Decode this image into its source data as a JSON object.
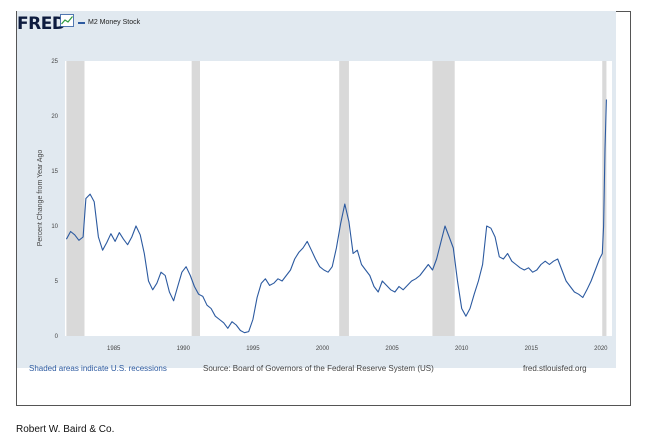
{
  "brand": "FRED",
  "legend_label": "M2 Money Stock",
  "footer": {
    "recessions_note": "Shaded areas indicate U.S. recessions",
    "source": "Source: Board of Governors of the Federal Reserve System (US)",
    "site": "fred.stlouisfed.org"
  },
  "credit": "Robert W. Baird & Co.",
  "colors": {
    "line": "#2c5aa0",
    "recession": "#d9d9d9",
    "panel": "#e1e9f0"
  },
  "chart_data": {
    "type": "line",
    "title": "",
    "xlabel": "",
    "ylabel": "Percent Change from Year Ago",
    "xlim": [
      1981.5,
      2020.8
    ],
    "ylim": [
      0,
      25
    ],
    "yticks": [
      0,
      5,
      10,
      15,
      20,
      25
    ],
    "xticks": [
      1985,
      1990,
      1995,
      2000,
      2005,
      2010,
      2015,
      2020
    ],
    "recessions": [
      [
        1981.6,
        1982.9
      ],
      [
        1990.6,
        1991.2
      ],
      [
        2001.2,
        2001.9
      ],
      [
        2007.9,
        2009.5
      ],
      [
        2020.1,
        2020.4
      ]
    ],
    "series": [
      {
        "name": "M2 Money Stock",
        "x": [
          1981.6,
          1981.9,
          1982.2,
          1982.5,
          1982.8,
          1983.0,
          1983.3,
          1983.6,
          1983.9,
          1984.2,
          1984.5,
          1984.8,
          1985.1,
          1985.4,
          1985.7,
          1986.0,
          1986.3,
          1986.6,
          1986.9,
          1987.2,
          1987.5,
          1987.8,
          1988.1,
          1988.4,
          1988.7,
          1989.0,
          1989.3,
          1989.6,
          1989.9,
          1990.2,
          1990.5,
          1990.8,
          1991.1,
          1991.4,
          1991.7,
          1992.0,
          1992.3,
          1992.6,
          1992.9,
          1993.2,
          1993.5,
          1993.8,
          1994.1,
          1994.4,
          1994.7,
          1995.0,
          1995.3,
          1995.6,
          1995.9,
          1996.2,
          1996.5,
          1996.8,
          1997.1,
          1997.4,
          1997.7,
          1998.0,
          1998.3,
          1998.6,
          1998.9,
          1999.2,
          1999.5,
          1999.8,
          2000.1,
          2000.4,
          2000.7,
          2001.0,
          2001.3,
          2001.6,
          2001.9,
          2002.2,
          2002.5,
          2002.8,
          2003.1,
          2003.4,
          2003.7,
          2004.0,
          2004.3,
          2004.6,
          2004.9,
          2005.2,
          2005.5,
          2005.8,
          2006.1,
          2006.4,
          2006.7,
          2007.0,
          2007.3,
          2007.6,
          2007.9,
          2008.2,
          2008.5,
          2008.8,
          2009.1,
          2009.4,
          2009.7,
          2010.0,
          2010.3,
          2010.6,
          2010.9,
          2011.2,
          2011.5,
          2011.8,
          2012.1,
          2012.4,
          2012.7,
          2013.0,
          2013.3,
          2013.6,
          2013.9,
          2014.2,
          2014.5,
          2014.8,
          2015.1,
          2015.4,
          2015.7,
          2016.0,
          2016.3,
          2016.6,
          2016.9,
          2017.2,
          2017.5,
          2017.8,
          2018.1,
          2018.4,
          2018.7,
          2019.0,
          2019.3,
          2019.6,
          2019.9,
          2020.1,
          2020.2,
          2020.3,
          2020.4
        ],
        "values": [
          8.8,
          9.5,
          9.2,
          8.7,
          9.0,
          12.5,
          12.9,
          12.2,
          9.0,
          7.8,
          8.5,
          9.3,
          8.6,
          9.4,
          8.8,
          8.3,
          9.0,
          10.0,
          9.2,
          7.5,
          5.0,
          4.2,
          4.8,
          5.8,
          5.5,
          4.0,
          3.2,
          4.5,
          5.8,
          6.3,
          5.5,
          4.5,
          3.8,
          3.6,
          2.8,
          2.5,
          1.8,
          1.5,
          1.2,
          0.7,
          1.3,
          1.0,
          0.5,
          0.3,
          0.4,
          1.5,
          3.5,
          4.8,
          5.2,
          4.6,
          4.8,
          5.2,
          5.0,
          5.5,
          6.0,
          7.0,
          7.6,
          8.0,
          8.6,
          7.8,
          7.0,
          6.3,
          6.0,
          5.8,
          6.3,
          8.0,
          10.2,
          12.0,
          10.4,
          7.5,
          7.8,
          6.5,
          6.0,
          5.5,
          4.5,
          4.0,
          5.0,
          4.6,
          4.2,
          4.0,
          4.5,
          4.2,
          4.6,
          5.0,
          5.2,
          5.5,
          6.0,
          6.5,
          6.0,
          7.0,
          8.5,
          10.0,
          9.0,
          8.0,
          5.0,
          2.5,
          1.8,
          2.5,
          3.8,
          5.0,
          6.5,
          10.0,
          9.8,
          9.0,
          7.2,
          7.0,
          7.5,
          6.8,
          6.5,
          6.2,
          6.0,
          6.2,
          5.8,
          6.0,
          6.5,
          6.8,
          6.5,
          6.8,
          7.0,
          6.0,
          5.0,
          4.5,
          4.0,
          3.8,
          3.5,
          4.2,
          5.0,
          6.0,
          7.0,
          7.5,
          10.0,
          17.0,
          21.5
        ]
      }
    ]
  }
}
